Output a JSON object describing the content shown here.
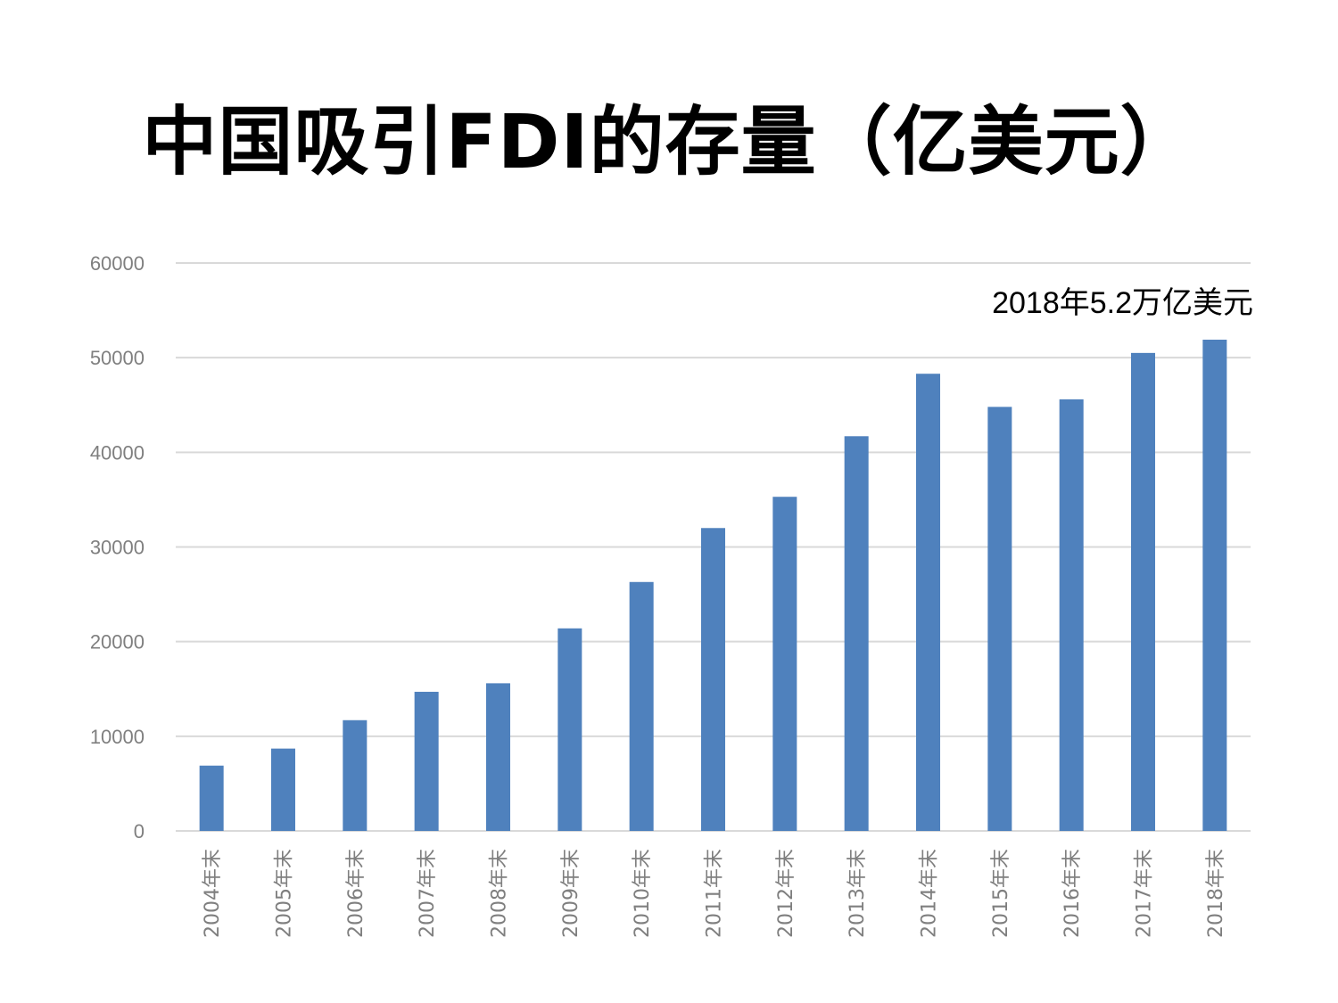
{
  "title": "中国吸引FDI的存量（亿美元）",
  "annotation": "2018年5.2万亿美元",
  "colors": {
    "bar": "#4f81bd",
    "grid": "#d9d9d9",
    "tick_text": "#7f7f7f"
  },
  "chart_data": {
    "type": "bar",
    "title": "中国吸引FDI的存量（亿美元）",
    "xlabel": "",
    "ylabel": "",
    "ylim": [
      0,
      60000
    ],
    "yticks": [
      0,
      10000,
      20000,
      30000,
      40000,
      50000,
      60000
    ],
    "grid": true,
    "legend": "none",
    "categories": [
      "2004年末",
      "2005年末",
      "2006年末",
      "2007年末",
      "2008年末",
      "2009年末",
      "2010年末",
      "2011年末",
      "2012年末",
      "2013年末",
      "2014年末",
      "2015年末",
      "2016年末",
      "2017年末",
      "2018年末"
    ],
    "series": [
      {
        "values": [
          6900,
          8700,
          11700,
          14700,
          15600,
          21400,
          26300,
          32000,
          35300,
          41700,
          48300,
          44800,
          45600,
          50500,
          51900
        ]
      }
    ]
  }
}
